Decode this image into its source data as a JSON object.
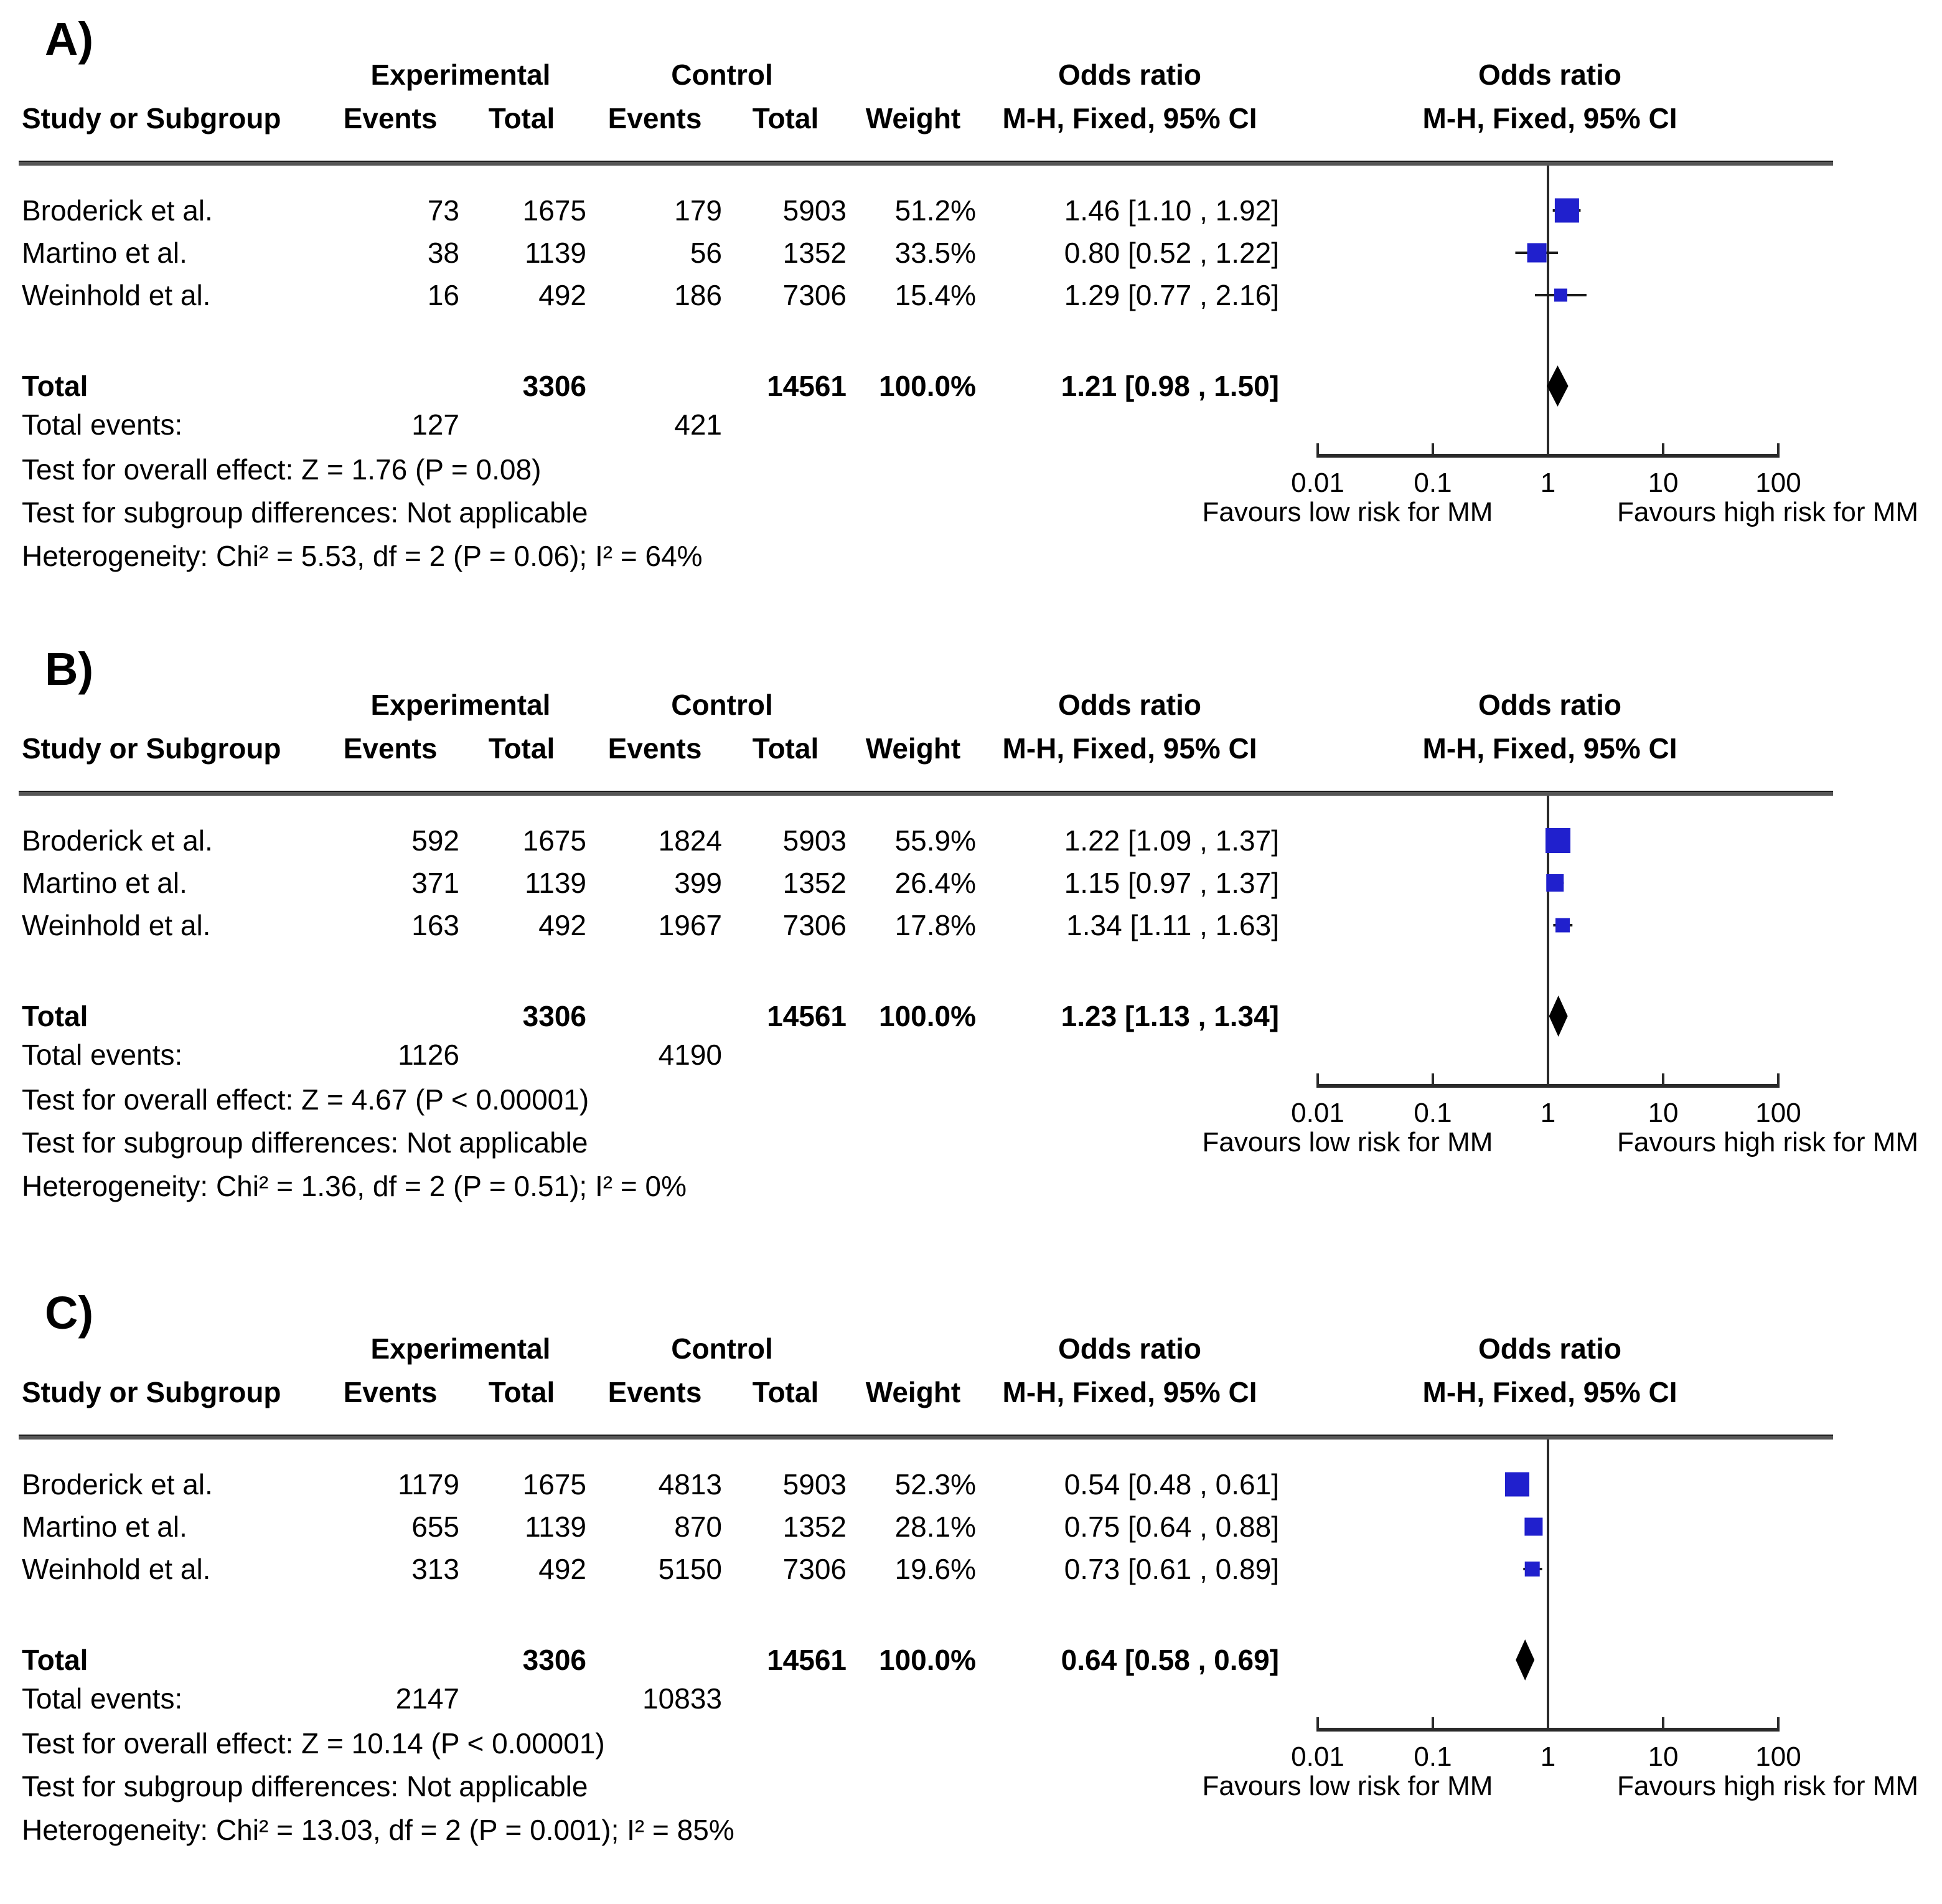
{
  "colors": {
    "square": "#2020cd",
    "diamond": "#000000",
    "line": "#2a2a2a"
  },
  "chart_data": [
    {
      "type": "forest",
      "panel_label": "A)",
      "effect_measure": "Odds ratio",
      "method": "M-H, Fixed, 95% CI",
      "columns": {
        "study": "Study or Subgroup",
        "group1": "Experimental",
        "group2": "Control",
        "events": "Events",
        "total": "Total",
        "weight": "Weight",
        "or_header": "Odds ratio",
        "or_subheader": "M-H, Fixed, 95% CI"
      },
      "studies": [
        {
          "name": "Broderick et al.",
          "exp_events": "73",
          "exp_total": "1675",
          "ctrl_events": "179",
          "ctrl_total": "5903",
          "weight": "51.2%",
          "weight_pct": 51.2,
          "or": 1.46,
          "ci_low": 1.1,
          "ci_high": 1.92,
          "or_text": "1.46 [1.10 , 1.92]"
        },
        {
          "name": "Martino et al.",
          "exp_events": "38",
          "exp_total": "1139",
          "ctrl_events": "56",
          "ctrl_total": "1352",
          "weight": "33.5%",
          "weight_pct": 33.5,
          "or": 0.8,
          "ci_low": 0.52,
          "ci_high": 1.22,
          "or_text": "0.80 [0.52 , 1.22]"
        },
        {
          "name": "Weinhold et al.",
          "exp_events": "16",
          "exp_total": "492",
          "ctrl_events": "186",
          "ctrl_total": "7306",
          "weight": "15.4%",
          "weight_pct": 15.4,
          "or": 1.29,
          "ci_low": 0.77,
          "ci_high": 2.16,
          "or_text": "1.29 [0.77 , 2.16]"
        }
      ],
      "total": {
        "label": "Total",
        "exp_total": "3306",
        "ctrl_total": "14561",
        "weight": "100.0%",
        "or": 1.21,
        "ci_low": 0.98,
        "ci_high": 1.5,
        "or_text": "1.21 [0.98 , 1.50]"
      },
      "total_events": {
        "label": "Total events:",
        "exp": "127",
        "ctrl": "421"
      },
      "stats": {
        "overall": "Test for overall effect: Z = 1.76 (P = 0.08)",
        "subgroup": "Test for subgroup differences: Not applicable",
        "heterogeneity": "Heterogeneity: Chi² = 5.53, df = 2 (P = 0.06); I² = 64%"
      },
      "x_axis": {
        "scale": "log",
        "ticks": [
          0.01,
          0.1,
          1,
          10,
          100
        ],
        "favours_left": "Favours low risk for MM",
        "favours_right": "Favours high risk for MM"
      }
    },
    {
      "type": "forest",
      "panel_label": "B)",
      "effect_measure": "Odds ratio",
      "method": "M-H, Fixed, 95% CI",
      "columns": {
        "study": "Study or Subgroup",
        "group1": "Experimental",
        "group2": "Control",
        "events": "Events",
        "total": "Total",
        "weight": "Weight",
        "or_header": "Odds ratio",
        "or_subheader": "M-H, Fixed, 95% CI"
      },
      "studies": [
        {
          "name": "Broderick et al.",
          "exp_events": "592",
          "exp_total": "1675",
          "ctrl_events": "1824",
          "ctrl_total": "5903",
          "weight": "55.9%",
          "weight_pct": 55.9,
          "or": 1.22,
          "ci_low": 1.09,
          "ci_high": 1.37,
          "or_text": "1.22 [1.09 , 1.37]"
        },
        {
          "name": "Martino et al.",
          "exp_events": "371",
          "exp_total": "1139",
          "ctrl_events": "399",
          "ctrl_total": "1352",
          "weight": "26.4%",
          "weight_pct": 26.4,
          "or": 1.15,
          "ci_low": 0.97,
          "ci_high": 1.37,
          "or_text": "1.15 [0.97 , 1.37]"
        },
        {
          "name": "Weinhold et al.",
          "exp_events": "163",
          "exp_total": "492",
          "ctrl_events": "1967",
          "ctrl_total": "7306",
          "weight": "17.8%",
          "weight_pct": 17.8,
          "or": 1.34,
          "ci_low": 1.11,
          "ci_high": 1.63,
          "or_text": "1.34 [1.11 , 1.63]"
        }
      ],
      "total": {
        "label": "Total",
        "exp_total": "3306",
        "ctrl_total": "14561",
        "weight": "100.0%",
        "or": 1.23,
        "ci_low": 1.13,
        "ci_high": 1.34,
        "or_text": "1.23 [1.13 , 1.34]"
      },
      "total_events": {
        "label": "Total events:",
        "exp": "1126",
        "ctrl": "4190"
      },
      "stats": {
        "overall": "Test for overall effect: Z = 4.67 (P < 0.00001)",
        "subgroup": "Test for subgroup differences: Not applicable",
        "heterogeneity": "Heterogeneity: Chi² = 1.36, df = 2 (P = 0.51); I² = 0%"
      },
      "x_axis": {
        "scale": "log",
        "ticks": [
          0.01,
          0.1,
          1,
          10,
          100
        ],
        "favours_left": "Favours low risk for MM",
        "favours_right": "Favours high risk for MM"
      }
    },
    {
      "type": "forest",
      "panel_label": "C)",
      "effect_measure": "Odds ratio",
      "method": "M-H, Fixed, 95% CI",
      "columns": {
        "study": "Study or Subgroup",
        "group1": "Experimental",
        "group2": "Control",
        "events": "Events",
        "total": "Total",
        "weight": "Weight",
        "or_header": "Odds ratio",
        "or_subheader": "M-H, Fixed, 95% CI"
      },
      "studies": [
        {
          "name": "Broderick et al.",
          "exp_events": "1179",
          "exp_total": "1675",
          "ctrl_events": "4813",
          "ctrl_total": "5903",
          "weight": "52.3%",
          "weight_pct": 52.3,
          "or": 0.54,
          "ci_low": 0.48,
          "ci_high": 0.61,
          "or_text": "0.54 [0.48 , 0.61]"
        },
        {
          "name": "Martino et al.",
          "exp_events": "655",
          "exp_total": "1139",
          "ctrl_events": "870",
          "ctrl_total": "1352",
          "weight": "28.1%",
          "weight_pct": 28.1,
          "or": 0.75,
          "ci_low": 0.64,
          "ci_high": 0.88,
          "or_text": "0.75 [0.64 , 0.88]"
        },
        {
          "name": "Weinhold et al.",
          "exp_events": "313",
          "exp_total": "492",
          "ctrl_events": "5150",
          "ctrl_total": "7306",
          "weight": "19.6%",
          "weight_pct": 19.6,
          "or": 0.73,
          "ci_low": 0.61,
          "ci_high": 0.89,
          "or_text": "0.73 [0.61 , 0.89]"
        }
      ],
      "total": {
        "label": "Total",
        "exp_total": "3306",
        "ctrl_total": "14561",
        "weight": "100.0%",
        "or": 0.64,
        "ci_low": 0.58,
        "ci_high": 0.69,
        "or_text": "0.64 [0.58 , 0.69]"
      },
      "total_events": {
        "label": "Total events:",
        "exp": "2147",
        "ctrl": "10833"
      },
      "stats": {
        "overall": "Test for overall effect: Z = 10.14 (P < 0.00001)",
        "subgroup": "Test for subgroup differences: Not applicable",
        "heterogeneity": "Heterogeneity: Chi² = 13.03, df = 2 (P = 0.001); I² = 85%"
      },
      "x_axis": {
        "scale": "log",
        "ticks": [
          0.01,
          0.1,
          1,
          10,
          100
        ],
        "favours_left": "Favours low risk for MM",
        "favours_right": "Favours high risk for MM"
      }
    }
  ]
}
